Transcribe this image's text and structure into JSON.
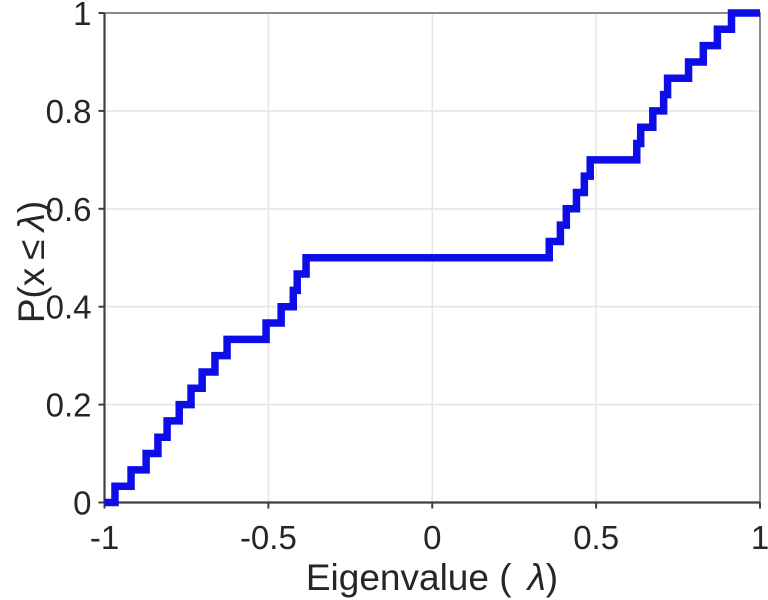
{
  "chart_data": {
    "type": "line",
    "subtype": "empirical-cdf-staircase",
    "title": "",
    "xlabel": {
      "pre": "Eigenvalue (",
      "lambda": "λ",
      "post": ")",
      "full": "Eigenvalue ( λ)"
    },
    "ylabel": {
      "pre": "P(x",
      "leq": "≤",
      "lambda": "λ",
      "post": ")",
      "full": "P(x ≤ λ)"
    },
    "xlim": [
      -1,
      1
    ],
    "ylim": [
      0,
      1
    ],
    "xticks": [
      -1,
      -0.5,
      0,
      0.5,
      1
    ],
    "xtick_labels": [
      "-1",
      "-0.5",
      "0",
      "0.5",
      "1"
    ],
    "yticks": [
      0,
      0.2,
      0.4,
      0.6,
      0.8,
      1
    ],
    "ytick_labels": [
      "0",
      "0.2",
      "0.4",
      "0.6",
      "0.8",
      "1"
    ],
    "grid": true,
    "legend": null,
    "n_points": 30,
    "step_height": 0.0333,
    "series": [
      {
        "name": "eigenvalue-ecdf",
        "color": "#0d0de8",
        "x": [
          -0.968,
          -0.919,
          -0.873,
          -0.837,
          -0.809,
          -0.772,
          -0.736,
          -0.702,
          -0.663,
          -0.626,
          -0.507,
          -0.461,
          -0.424,
          -0.412,
          -0.385,
          0.357,
          0.391,
          0.409,
          0.44,
          0.464,
          0.482,
          0.624,
          0.636,
          0.673,
          0.706,
          0.718,
          0.782,
          0.827,
          0.87,
          0.913
        ],
        "y": [
          0.0333,
          0.0667,
          0.1,
          0.1333,
          0.1667,
          0.2,
          0.2333,
          0.2667,
          0.3,
          0.3333,
          0.3667,
          0.4,
          0.4333,
          0.4667,
          0.5,
          0.5333,
          0.5667,
          0.6,
          0.6333,
          0.6667,
          0.7,
          0.7333,
          0.7667,
          0.8,
          0.8333,
          0.8667,
          0.9,
          0.9333,
          0.9667,
          1.0
        ]
      }
    ],
    "plateau_note": "flat at P=0.5 between x=-0.385 and x=0.357",
    "colors": {
      "curve": "#0d0de8",
      "grid": "#e6e6e6",
      "axis": "#3f3f3f",
      "box": "#6e6e6e",
      "text": "#262626",
      "background": "#ffffff"
    }
  }
}
